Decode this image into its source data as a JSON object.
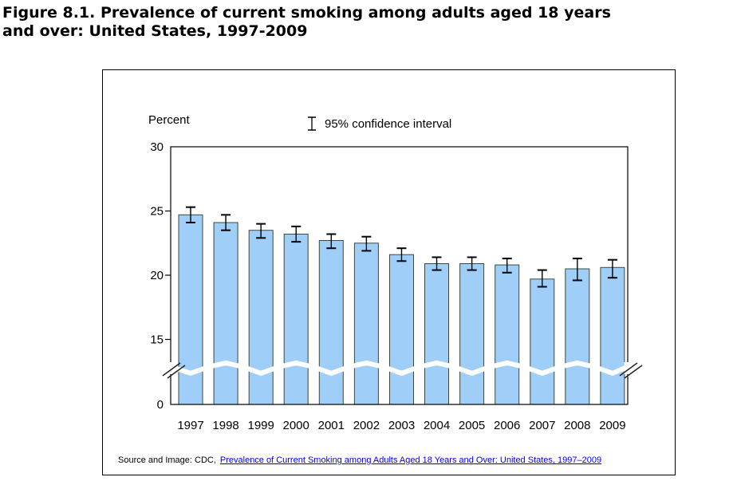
{
  "title": {
    "line1": "Figure 8.1. Prevalence of current smoking among adults aged 18 years",
    "line2": "and over: United States, 1997-2009"
  },
  "chart": {
    "percent_label": "Percent",
    "legend_label": "95% confidence interval",
    "source_prefix": "Source and Image: CDC,",
    "source_link": "Prevalence of Current Smoking among Adults Aged 18 Years and Over: United States, 1997–2009"
  },
  "chart_data": {
    "type": "bar",
    "title": "Figure 8.1. Prevalence of current smoking among adults aged 18 years and over: United States, 1997-2009",
    "categories": [
      "1997",
      "1998",
      "1999",
      "2000",
      "2001",
      "2002",
      "2003",
      "2004",
      "2005",
      "2006",
      "2007",
      "2008",
      "2009"
    ],
    "values": [
      24.7,
      24.1,
      23.5,
      23.2,
      22.7,
      22.5,
      21.6,
      20.9,
      20.9,
      20.8,
      19.7,
      20.5,
      20.6
    ],
    "ci_lower": [
      24.1,
      23.5,
      22.9,
      22.6,
      22.1,
      21.9,
      21.1,
      20.4,
      20.4,
      20.2,
      19.1,
      19.6,
      19.8
    ],
    "ci_upper": [
      25.3,
      24.7,
      24.0,
      23.8,
      23.2,
      23.0,
      22.1,
      21.4,
      21.4,
      21.3,
      20.4,
      21.3,
      21.2
    ],
    "xlabel": "",
    "ylabel": "Percent",
    "ylim": [
      0,
      30
    ],
    "yticks": [
      0,
      15,
      20,
      25,
      30
    ],
    "axis_break": true,
    "legend": "95% confidence interval",
    "legend_position": "top",
    "grid": false,
    "bar_color": "#9FCFF8",
    "bar_border": "#3C4840",
    "error_color": "#000000"
  }
}
